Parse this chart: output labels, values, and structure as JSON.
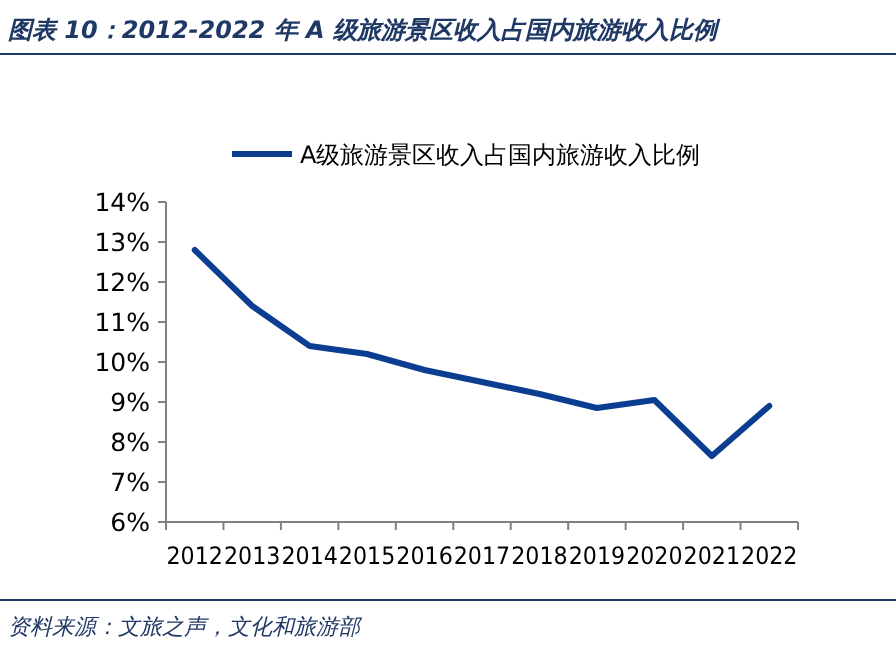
{
  "chart_data": {
    "type": "line",
    "title": "图表 10：2012-2022 年 A 级旅游景区收入占国内旅游收入比例",
    "categories": [
      "2012",
      "2013",
      "2014",
      "2015",
      "2016",
      "2017",
      "2018",
      "2019",
      "2020",
      "2021",
      "2022"
    ],
    "series": [
      {
        "name": "A级旅游景区收入占国内旅游收入比例",
        "color": "#0b3d91",
        "values": [
          12.8,
          11.4,
          10.4,
          10.2,
          9.8,
          9.5,
          9.2,
          8.85,
          9.05,
          7.65,
          8.9
        ]
      }
    ],
    "ylim": [
      6,
      14
    ],
    "yticks": [
      {
        "value": 6,
        "label": "6%"
      },
      {
        "value": 7,
        "label": "7%"
      },
      {
        "value": 8,
        "label": "8%"
      },
      {
        "value": 9,
        "label": "9%"
      },
      {
        "value": 10,
        "label": "10%"
      },
      {
        "value": 11,
        "label": "11%"
      },
      {
        "value": 12,
        "label": "12%"
      },
      {
        "value": 13,
        "label": "13%"
      },
      {
        "value": 14,
        "label": "14%"
      }
    ],
    "legend": "top",
    "grid": false,
    "marker": "none",
    "line_style": "solid",
    "annotations": [
      "资料来源：文旅之声，文化和旅游部"
    ]
  }
}
